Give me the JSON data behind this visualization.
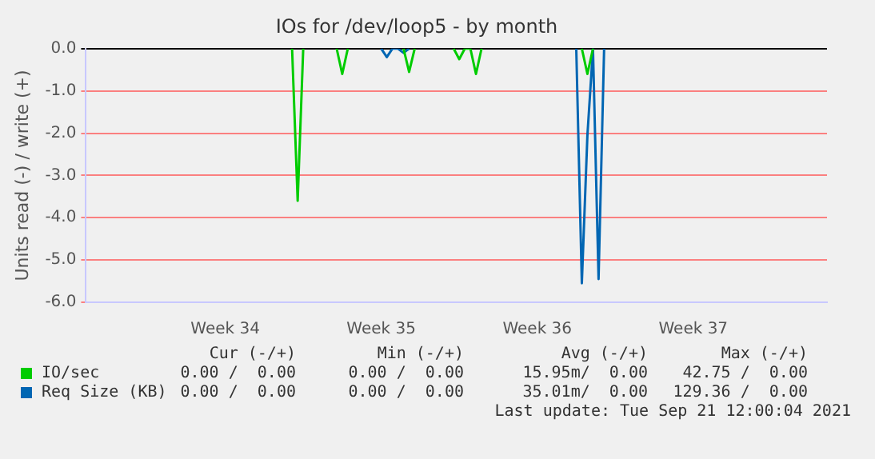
{
  "chart_data": {
    "type": "line",
    "title": "IOs for /dev/loop5 - by month",
    "ylabel": "Units read (-) / write (+)",
    "categories": [
      null,
      null,
      null,
      null,
      null,
      null,
      null,
      null,
      null,
      null,
      null,
      null,
      null,
      null,
      null,
      null,
      null,
      null,
      null,
      null,
      null,
      null,
      null,
      null,
      null,
      "Week 34",
      null,
      null,
      null,
      null,
      null,
      null,
      null,
      null,
      null,
      null,
      null,
      null,
      null,
      null,
      null,
      null,
      null,
      null,
      null,
      null,
      null,
      null,
      null,
      null,
      null,
      null,
      null,
      "Week 35",
      null,
      null,
      null,
      null,
      null,
      null,
      null,
      null,
      null,
      null,
      null,
      null,
      null,
      null,
      null,
      null,
      null,
      null,
      null,
      null,
      null,
      null,
      null,
      null,
      null,
      null,
      null,
      "Week 36",
      null,
      null,
      null,
      null,
      null,
      null,
      null,
      null,
      null,
      null,
      null,
      null,
      null,
      null,
      null,
      null,
      null,
      null,
      null,
      null,
      null,
      null,
      null,
      null,
      null,
      null,
      null,
      "Week 37",
      null,
      null,
      null,
      null,
      null,
      null,
      null,
      null,
      null,
      null,
      null,
      null,
      null,
      null,
      null,
      null,
      null,
      null,
      null,
      null,
      null,
      null,
      null,
      null
    ],
    "ylim": [
      -6,
      0
    ],
    "yticks": [
      {
        "value": -6,
        "label": "-6.0"
      },
      {
        "value": -5,
        "label": "-5.0"
      },
      {
        "value": -4,
        "label": "-4.0"
      },
      {
        "value": -3,
        "label": "-3.0"
      },
      {
        "value": -2,
        "label": "-2.0"
      },
      {
        "value": -1,
        "label": "-1.0"
      },
      {
        "value": 0,
        "label": "0.0"
      }
    ],
    "grid": "y",
    "legend": "bottom",
    "marker": "none",
    "series": [
      {
        "name": "IO/sec",
        "color": "#00cc00",
        "values": [
          null,
          null,
          null,
          null,
          null,
          null,
          null,
          null,
          null,
          null,
          null,
          null,
          null,
          null,
          null,
          null,
          null,
          null,
          null,
          null,
          null,
          null,
          null,
          null,
          null,
          null,
          null,
          null,
          null,
          null,
          null,
          null,
          null,
          null,
          null,
          null,
          null,
          0,
          -3.6,
          0,
          null,
          null,
          null,
          null,
          null,
          0,
          -0.6,
          0,
          null,
          null,
          null,
          null,
          null,
          null,
          null,
          null,
          null,
          0,
          -0.55,
          0,
          null,
          null,
          null,
          null,
          null,
          null,
          0,
          -0.25,
          0,
          0,
          -0.6,
          0,
          null,
          null,
          null,
          null,
          null,
          null,
          null,
          null,
          null,
          null,
          null,
          null,
          null,
          null,
          null,
          null,
          null,
          0,
          -0.6,
          0,
          null,
          null,
          null,
          null,
          null,
          null,
          null,
          null,
          null,
          null,
          null,
          null,
          null,
          null,
          null,
          null,
          null,
          null,
          null,
          null,
          null,
          null,
          null,
          null,
          null,
          null,
          null,
          null,
          null,
          null,
          null,
          null,
          null,
          null,
          null,
          null,
          null,
          null,
          null,
          null,
          null,
          null
        ]
      },
      {
        "name": "Req Size (KB)",
        "color": "#0066b3",
        "values": [
          null,
          null,
          null,
          null,
          null,
          null,
          null,
          null,
          null,
          null,
          null,
          null,
          null,
          null,
          null,
          null,
          null,
          null,
          null,
          null,
          null,
          null,
          null,
          null,
          null,
          null,
          null,
          null,
          null,
          null,
          null,
          null,
          null,
          null,
          null,
          null,
          null,
          null,
          null,
          null,
          null,
          null,
          null,
          null,
          null,
          null,
          null,
          null,
          null,
          null,
          null,
          null,
          null,
          0,
          -0.2,
          0,
          0,
          -0.1,
          0,
          null,
          null,
          null,
          null,
          null,
          null,
          null,
          null,
          null,
          null,
          null,
          null,
          null,
          null,
          null,
          null,
          null,
          null,
          null,
          null,
          null,
          null,
          null,
          null,
          null,
          null,
          null,
          null,
          null,
          0,
          -5.55,
          -2.05,
          0,
          -5.45,
          0,
          null,
          null,
          null,
          null,
          null,
          null,
          null,
          null,
          null,
          null,
          null,
          null,
          null,
          null,
          null,
          null,
          null,
          null,
          null,
          null,
          null,
          null,
          null,
          null,
          null,
          null,
          null,
          null,
          null,
          null,
          null,
          null,
          null,
          null,
          null,
          null,
          null,
          null,
          null,
          null
        ]
      }
    ],
    "annotations": [
      "Cur (-/+)",
      "Min (-/+)",
      "Avg (-/+)",
      "Max (-/+)",
      "0.00 /  0.00",
      "0.00 /  0.00",
      "15.95m/  0.00",
      "42.75 /  0.00",
      "0.00 /  0.00",
      "0.00 /  0.00",
      "35.01m/  0.00",
      "129.36 /  0.00",
      "Last update: Tue Sep 21 12:00:04 2021"
    ]
  }
}
